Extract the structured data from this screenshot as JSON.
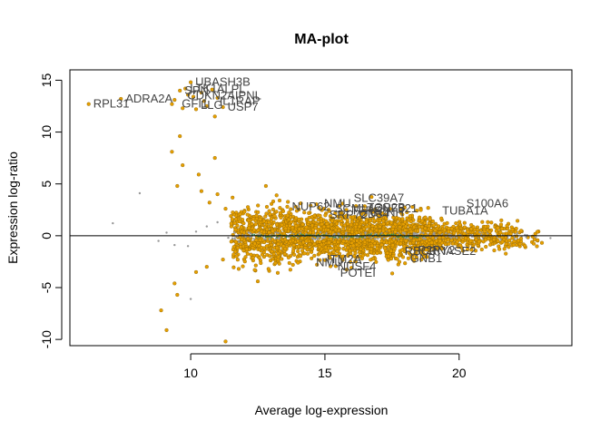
{
  "chart_data": {
    "type": "scatter",
    "title": "MA-plot",
    "xlabel": "Average log-expression",
    "ylabel": "Expression log-ratio",
    "xlim": [
      5.5,
      24.2
    ],
    "ylim": [
      -10.6,
      16.0
    ],
    "x_ticks": [
      10,
      15,
      20
    ],
    "y_ticks": [
      -10,
      -5,
      0,
      5,
      10,
      15
    ],
    "x_tick_labels": [
      "10",
      "15",
      "20"
    ],
    "y_tick_labels": [
      "-10",
      "-5",
      "0",
      "5",
      "10",
      "15"
    ],
    "reference_line_y": 0,
    "grid": false,
    "legend": "none",
    "colors": {
      "significant": "#E69F00",
      "significant_edge": "#8B6508",
      "non_significant": "#999999",
      "smoothed_trend": "#2E8B57",
      "reference_line": "#000000"
    },
    "series": [
      {
        "key": "significant",
        "points": [
          [
            6.2,
            12.7
          ],
          [
            7.4,
            13.2
          ],
          [
            9.3,
            12.7
          ],
          [
            9.4,
            13.1
          ],
          [
            9.6,
            14.0
          ],
          [
            9.7,
            12.3
          ],
          [
            9.8,
            14.2
          ],
          [
            9.9,
            13.6
          ],
          [
            10.0,
            14.8
          ],
          [
            10.1,
            13.4
          ],
          [
            10.2,
            12.2
          ],
          [
            10.4,
            13.8
          ],
          [
            10.5,
            13.0
          ],
          [
            10.6,
            12.5
          ],
          [
            10.8,
            14.1
          ],
          [
            10.9,
            11.5
          ],
          [
            11.0,
            13.3
          ],
          [
            11.2,
            12.4
          ],
          [
            9.3,
            8.1
          ],
          [
            9.6,
            9.6
          ],
          [
            9.5,
            4.8
          ],
          [
            9.7,
            6.8
          ],
          [
            10.3,
            5.9
          ],
          [
            10.4,
            4.3
          ],
          [
            10.9,
            7.5
          ],
          [
            10.7,
            3.2
          ],
          [
            11.0,
            4.0
          ],
          [
            11.3,
            2.6
          ],
          [
            11.5,
            1.9
          ],
          [
            12.8,
            4.8
          ],
          [
            13.2,
            3.9
          ],
          [
            13.6,
            2.8
          ],
          [
            8.9,
            -7.2
          ],
          [
            9.1,
            -9.1
          ],
          [
            9.4,
            -4.6
          ],
          [
            9.5,
            -5.7
          ],
          [
            10.2,
            -3.5
          ],
          [
            10.6,
            -3.0
          ],
          [
            11.2,
            -2.3
          ],
          [
            11.3,
            -10.2
          ],
          [
            11.6,
            -1.8
          ],
          [
            12.5,
            -4.4
          ],
          [
            12.9,
            -3.2
          ],
          [
            13.3,
            -2.7
          ]
        ]
      },
      {
        "key": "non_significant",
        "points": [
          [
            7.1,
            1.2
          ],
          [
            8.1,
            4.1
          ],
          [
            8.8,
            -0.5
          ],
          [
            9.1,
            0.3
          ],
          [
            9.4,
            -0.9
          ],
          [
            9.9,
            -1.0
          ],
          [
            10.2,
            0.4
          ],
          [
            10.6,
            0.9
          ],
          [
            11.0,
            1.3
          ],
          [
            11.4,
            -0.2
          ],
          [
            11.8,
            -0.6
          ],
          [
            10.0,
            -6.1
          ]
        ]
      }
    ],
    "dense_cloud": {
      "description": "several thousand genes between average log-expression 11.5 and 23.5, log-ratio roughly -3.5 to 4",
      "x_range": [
        11.5,
        23.5
      ],
      "y_spread_core": 1.1
    },
    "labeled_genes": [
      {
        "name": "RPL31",
        "x": 6.2,
        "y": 12.7
      },
      {
        "name": "ADRA2A",
        "x": 7.4,
        "y": 13.2
      },
      {
        "name": "UBASH3B",
        "x": 10.0,
        "y": 14.8
      },
      {
        "name": "SPN",
        "x": 9.6,
        "y": 14.0
      },
      {
        "name": "LTK1",
        "x": 9.8,
        "y": 14.2
      },
      {
        "name": "ALPL",
        "x": 10.8,
        "y": 14.1
      },
      {
        "name": "CDKN2AIPNL",
        "x": 9.7,
        "y": 13.5
      },
      {
        "name": "IL1RAP",
        "x": 10.9,
        "y": 13.0
      },
      {
        "name": "USP7",
        "x": 11.2,
        "y": 12.4
      },
      {
        "name": "GFI1",
        "x": 9.5,
        "y": 12.7
      },
      {
        "name": "LLG",
        "x": 10.2,
        "y": 12.6
      },
      {
        "name": "NUP62",
        "x": 13.6,
        "y": 2.8
      },
      {
        "name": "NMU",
        "x": 14.8,
        "y": 3.1
      },
      {
        "name": "SLC39A7",
        "x": 15.9,
        "y": 3.6
      },
      {
        "name": "SCML4",
        "x": 15.2,
        "y": 2.6
      },
      {
        "name": "SRP72",
        "x": 15.0,
        "y": 2.0
      },
      {
        "name": "TFRC",
        "x": 15.8,
        "y": 2.4
      },
      {
        "name": "ZNF821",
        "x": 16.7,
        "y": 2.6
      },
      {
        "name": "TOP2B",
        "x": 16.4,
        "y": 2.7
      },
      {
        "name": "CD34",
        "x": 16.1,
        "y": 2.1
      },
      {
        "name": "CCNH",
        "x": 16.5,
        "y": 2.2
      },
      {
        "name": "S100A6",
        "x": 20.1,
        "y": 3.1
      },
      {
        "name": "TUBA1A",
        "x": 19.2,
        "y": 2.4
      },
      {
        "name": "NMU",
        "x": 14.5,
        "y": -2.6
      },
      {
        "name": "ITM2A",
        "x": 14.9,
        "y": -2.3
      },
      {
        "name": "NUSF4",
        "x": 15.3,
        "y": -3.0
      },
      {
        "name": "POTEI",
        "x": 15.4,
        "y": -3.6
      },
      {
        "name": "RBC3",
        "x": 17.8,
        "y": -1.5
      },
      {
        "name": "P2RY2",
        "x": 18.3,
        "y": -1.4
      },
      {
        "name": "RNASE2",
        "x": 18.7,
        "y": -1.5
      },
      {
        "name": "GNB1",
        "x": 18.0,
        "y": -2.2
      }
    ]
  }
}
